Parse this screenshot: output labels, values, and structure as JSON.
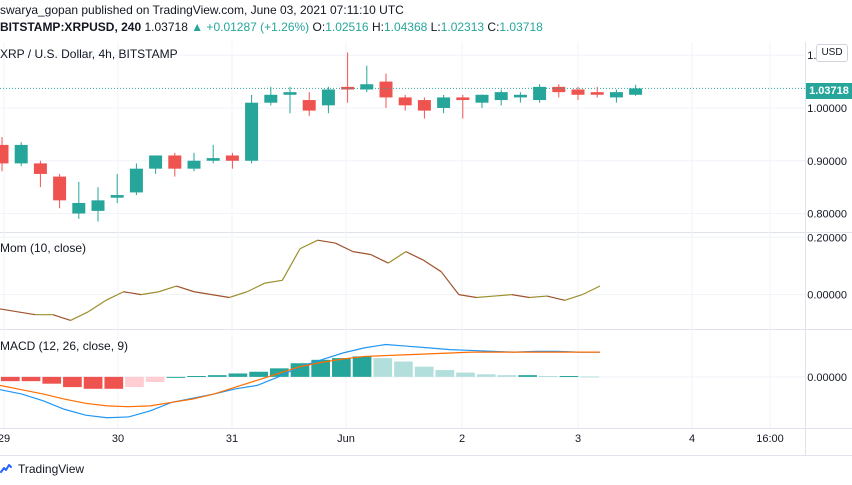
{
  "header": {
    "publish_line": "swarya_gopan published on TradingView.com, June 03, 2021 07:11:10 UTC",
    "symbol": "BITSTAMP:XRPUSD, 240",
    "last": "1.03718",
    "change": "▲ +0.01287 (+1.26%)",
    "o_label": "O:",
    "o_value": "1.02516",
    "h_label": "H:",
    "h_value": "1.04368",
    "l_label": "L:",
    "l_value": "1.02313",
    "c_label": "C:",
    "c_value": "1.03718"
  },
  "panes": {
    "main_label": "XRP / U.S. Dollar, 4h, BITSTAMP",
    "mom_label": "Mom (10, close)",
    "macd_label": "MACD (12, 26, close, 9)"
  },
  "currency_button": "USD",
  "last_price_tag": "1.03718",
  "footer": {
    "brand": "TradingView",
    "icon": "tradingview-logo-icon"
  },
  "colors": {
    "up": "#26a69a",
    "down": "#ef5350",
    "mom": "#9b8f2c",
    "mom_down": "#a0522d",
    "macd": "#2196f3",
    "signal": "#ff6d00",
    "hist_up_strong": "#26a69a",
    "hist_up_weak": "#b2dfdb",
    "hist_down_strong": "#ef5350",
    "hist_down_weak": "#ffcdd2",
    "grid": "#f0f3fa"
  },
  "chart_data": [
    {
      "type": "candlestick",
      "title": "XRP / U.S. Dollar, 4h, BITSTAMP",
      "y_ticks": [
        "1.10000",
        "1.00000",
        "0.90000",
        "0.80000"
      ],
      "y_tick_values": [
        1.1,
        1.0,
        0.9,
        0.8
      ],
      "ylim": [
        0.765,
        1.125
      ],
      "x_ticks": [
        "29",
        "30",
        "31",
        "Jun",
        "2",
        "3",
        "4",
        "16:00"
      ],
      "candles": [
        {
          "o": 0.93,
          "h": 0.945,
          "l": 0.88,
          "c": 0.895
        },
        {
          "o": 0.895,
          "h": 0.935,
          "l": 0.89,
          "c": 0.93
        },
        {
          "o": 0.895,
          "h": 0.9,
          "l": 0.85,
          "c": 0.875
        },
        {
          "o": 0.87,
          "h": 0.875,
          "l": 0.81,
          "c": 0.825
        },
        {
          "o": 0.8,
          "h": 0.86,
          "l": 0.79,
          "c": 0.82
        },
        {
          "o": 0.805,
          "h": 0.85,
          "l": 0.785,
          "c": 0.825
        },
        {
          "o": 0.83,
          "h": 0.875,
          "l": 0.82,
          "c": 0.835
        },
        {
          "o": 0.84,
          "h": 0.895,
          "l": 0.835,
          "c": 0.885
        },
        {
          "o": 0.885,
          "h": 0.91,
          "l": 0.875,
          "c": 0.91
        },
        {
          "o": 0.91,
          "h": 0.915,
          "l": 0.87,
          "c": 0.885
        },
        {
          "o": 0.885,
          "h": 0.915,
          "l": 0.88,
          "c": 0.9
        },
        {
          "o": 0.9,
          "h": 0.93,
          "l": 0.895,
          "c": 0.905
        },
        {
          "o": 0.91,
          "h": 0.915,
          "l": 0.885,
          "c": 0.9
        },
        {
          "o": 0.9,
          "h": 1.025,
          "l": 0.895,
          "c": 1.01
        },
        {
          "o": 1.01,
          "h": 1.04,
          "l": 1.005,
          "c": 1.025
        },
        {
          "o": 1.025,
          "h": 1.04,
          "l": 0.99,
          "c": 1.03
        },
        {
          "o": 1.015,
          "h": 1.03,
          "l": 0.985,
          "c": 0.995
        },
        {
          "o": 1.005,
          "h": 1.04,
          "l": 0.99,
          "c": 1.035
        },
        {
          "o": 1.04,
          "h": 1.105,
          "l": 1.01,
          "c": 1.035
        },
        {
          "o": 1.035,
          "h": 1.08,
          "l": 1.03,
          "c": 1.045
        },
        {
          "o": 1.05,
          "h": 1.065,
          "l": 1.0,
          "c": 1.02
        },
        {
          "o": 1.02,
          "h": 1.025,
          "l": 0.995,
          "c": 1.005
        },
        {
          "o": 1.015,
          "h": 1.02,
          "l": 0.98,
          "c": 0.995
        },
        {
          "o": 1.0,
          "h": 1.025,
          "l": 0.99,
          "c": 1.02
        },
        {
          "o": 1.02,
          "h": 1.025,
          "l": 0.98,
          "c": 1.015
        },
        {
          "o": 1.01,
          "h": 1.025,
          "l": 1.0,
          "c": 1.025
        },
        {
          "o": 1.015,
          "h": 1.035,
          "l": 1.005,
          "c": 1.03
        },
        {
          "o": 1.02,
          "h": 1.03,
          "l": 1.01,
          "c": 1.025
        },
        {
          "o": 1.015,
          "h": 1.045,
          "l": 1.01,
          "c": 1.04
        },
        {
          "o": 1.04,
          "h": 1.045,
          "l": 1.02,
          "c": 1.03
        },
        {
          "o": 1.035,
          "h": 1.04,
          "l": 1.015,
          "c": 1.025
        },
        {
          "o": 1.03,
          "h": 1.04,
          "l": 1.02,
          "c": 1.025
        },
        {
          "o": 1.02,
          "h": 1.035,
          "l": 1.01,
          "c": 1.03
        },
        {
          "o": 1.025,
          "h": 1.044,
          "l": 1.023,
          "c": 1.037
        }
      ],
      "last_price": 1.03718
    },
    {
      "type": "line",
      "title": "Mom (10, close)",
      "y_ticks": [
        "0.20000",
        "0.00000"
      ],
      "y_tick_values": [
        0.2,
        0.0
      ],
      "ylim": [
        -0.12,
        0.215
      ],
      "values": [
        -0.05,
        -0.06,
        -0.07,
        -0.07,
        -0.09,
        -0.06,
        -0.02,
        0.01,
        0.0,
        0.01,
        0.03,
        0.01,
        0.0,
        -0.01,
        0.01,
        0.04,
        0.05,
        0.16,
        0.19,
        0.18,
        0.15,
        0.14,
        0.11,
        0.15,
        0.12,
        0.08,
        0.0,
        -0.01,
        -0.005,
        0.0,
        -0.01,
        -0.005,
        -0.02,
        0.0,
        0.03
      ]
    },
    {
      "type": "macd",
      "title": "MACD (12, 26, close, 9)",
      "y_ticks": [
        "0.00000"
      ],
      "y_tick_values": [
        0.0
      ],
      "ylim": [
        -0.06,
        0.055
      ],
      "macd": [
        -0.015,
        -0.02,
        -0.028,
        -0.038,
        -0.045,
        -0.048,
        -0.047,
        -0.04,
        -0.03,
        -0.025,
        -0.02,
        -0.014,
        -0.01,
        0.0,
        0.012,
        0.02,
        0.028,
        0.034,
        0.038,
        0.036,
        0.034,
        0.032,
        0.031,
        0.03,
        0.029,
        0.03,
        0.03,
        0.029,
        0.029
      ],
      "signal": [
        -0.01,
        -0.015,
        -0.02,
        -0.026,
        -0.031,
        -0.034,
        -0.035,
        -0.034,
        -0.03,
        -0.026,
        -0.02,
        -0.012,
        -0.004,
        0.004,
        0.012,
        0.017,
        0.021,
        0.024,
        0.025,
        0.026,
        0.027,
        0.028,
        0.029,
        0.029,
        0.029,
        0.029,
        0.029,
        0.029,
        0.029
      ],
      "histogram": [
        -0.005,
        -0.005,
        -0.008,
        -0.012,
        -0.014,
        -0.014,
        -0.012,
        -0.006,
        0.0,
        0.001,
        0.002,
        0.004,
        0.006,
        0.01,
        0.016,
        0.02,
        0.022,
        0.024,
        0.022,
        0.018,
        0.012,
        0.008,
        0.005,
        0.003,
        0.002,
        0.002,
        0.001,
        0.001,
        0.0005
      ]
    }
  ]
}
